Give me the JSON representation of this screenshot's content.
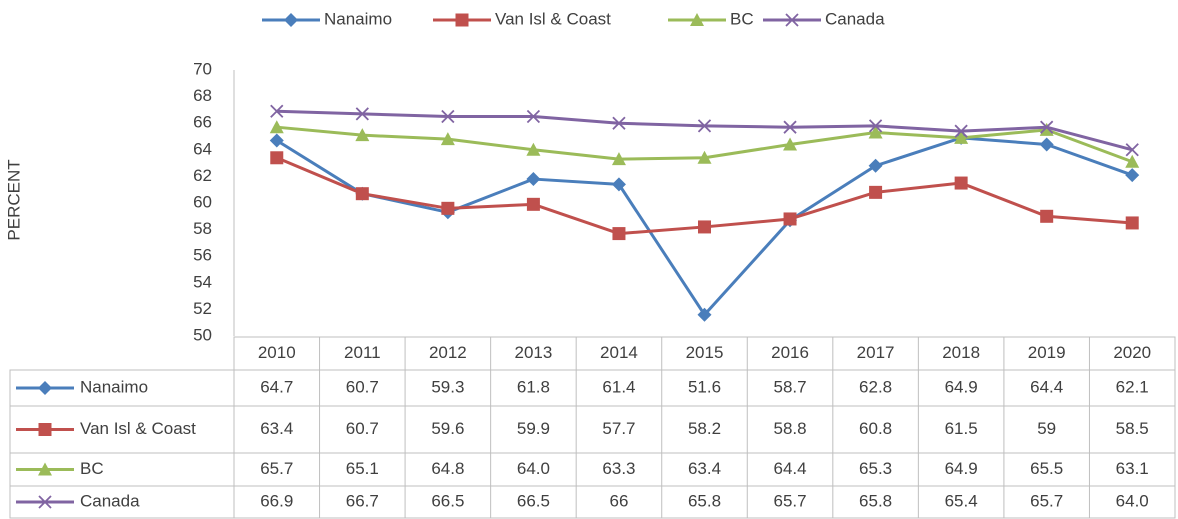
{
  "chart_data": {
    "type": "line",
    "y_label": "PERCENT",
    "categories": [
      "2010",
      "2011",
      "2012",
      "2013",
      "2014",
      "2015",
      "2016",
      "2017",
      "2018",
      "2019",
      "2020"
    ],
    "series": [
      {
        "name": "Nanaimo",
        "color": "#4a7ebb",
        "marker": "diamond",
        "values": [
          64.7,
          60.7,
          59.3,
          61.8,
          61.4,
          51.6,
          58.7,
          62.8,
          64.9,
          64.4,
          62.1
        ],
        "value_labels": [
          "64.7",
          "60.7",
          "59.3",
          "61.8",
          "61.4",
          "51.6",
          "58.7",
          "62.8",
          "64.9",
          "64.4",
          "62.1"
        ]
      },
      {
        "name": "Van Isl & Coast",
        "color": "#c0504d",
        "marker": "square",
        "values": [
          63.4,
          60.7,
          59.6,
          59.9,
          57.7,
          58.2,
          58.8,
          60.8,
          61.5,
          59,
          58.5
        ],
        "value_labels": [
          "63.4",
          "60.7",
          "59.6",
          "59.9",
          "57.7",
          "58.2",
          "58.8",
          "60.8",
          "61.5",
          "59",
          "58.5"
        ]
      },
      {
        "name": "BC",
        "color": "#9bbb59",
        "marker": "triangle",
        "values": [
          65.7,
          65.1,
          64.8,
          64.0,
          63.3,
          63.4,
          64.4,
          65.3,
          64.9,
          65.5,
          63.1
        ],
        "value_labels": [
          "65.7",
          "65.1",
          "64.8",
          "64.0",
          "63.3",
          "63.4",
          "64.4",
          "65.3",
          "64.9",
          "65.5",
          "63.1"
        ]
      },
      {
        "name": "Canada",
        "color": "#8064a2",
        "marker": "x",
        "values": [
          66.9,
          66.7,
          66.5,
          66.5,
          66,
          65.8,
          65.7,
          65.8,
          65.4,
          65.7,
          64.0
        ],
        "value_labels": [
          "66.9",
          "66.7",
          "66.5",
          "66.5",
          "66",
          "65.8",
          "65.7",
          "65.8",
          "65.4",
          "65.7",
          "64.0"
        ]
      }
    ],
    "ylim": [
      50,
      70
    ],
    "yticks": [
      50,
      52,
      54,
      56,
      58,
      60,
      62,
      64,
      66,
      68,
      70
    ],
    "legend": "top",
    "grid": false
  }
}
